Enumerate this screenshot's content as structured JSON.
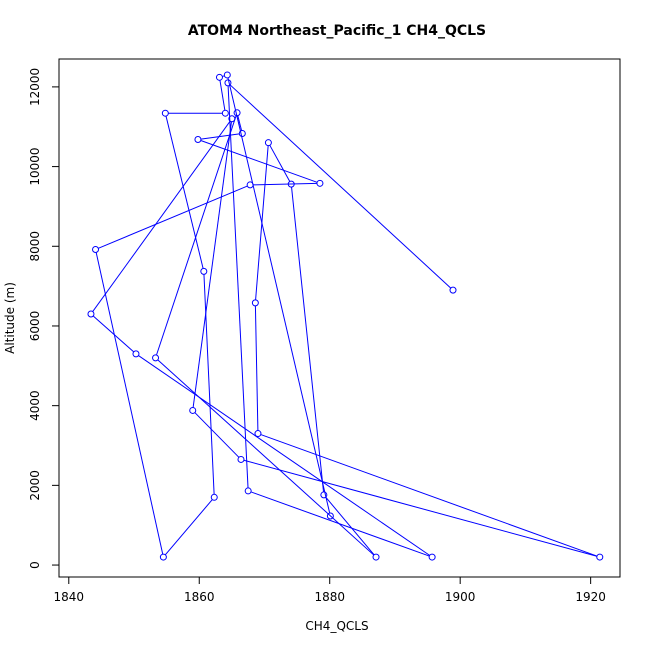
{
  "chart_data": {
    "type": "line",
    "title": "ATOM4 Northeast_Pacific_1 CH4_QCLS",
    "xlabel": "CH4_QCLS",
    "ylabel": "Altitude (m)",
    "xlim": [
      1838.5,
      1924.5
    ],
    "ylim": [
      -300,
      12700
    ],
    "x_ticks": [
      1840,
      1860,
      1880,
      1900,
      1920
    ],
    "y_ticks": [
      0,
      2000,
      4000,
      6000,
      8000,
      10000,
      12000
    ],
    "grid": false,
    "legend": "none",
    "series_color": "#0000ff",
    "points": [
      {
        "x": 1898.9,
        "y": 6900
      },
      {
        "x": 1864.4,
        "y": 12100
      },
      {
        "x": 1867.5,
        "y": 1860
      },
      {
        "x": 1895.7,
        "y": 200
      },
      {
        "x": 1850.3,
        "y": 5300
      },
      {
        "x": 1843.4,
        "y": 6300
      },
      {
        "x": 1865.0,
        "y": 11200
      },
      {
        "x": 1859.0,
        "y": 3880
      },
      {
        "x": 1866.4,
        "y": 2650
      },
      {
        "x": 1921.4,
        "y": 200
      },
      {
        "x": 1869.0,
        "y": 3300
      },
      {
        "x": 1868.6,
        "y": 6580
      },
      {
        "x": 1870.6,
        "y": 10600
      },
      {
        "x": 1874.1,
        "y": 9560
      },
      {
        "x": 1879.1,
        "y": 1760
      },
      {
        "x": 1887.1,
        "y": 200
      },
      {
        "x": 1853.3,
        "y": 5200
      },
      {
        "x": 1865.8,
        "y": 11350
      },
      {
        "x": 1866.6,
        "y": 10830
      },
      {
        "x": 1859.8,
        "y": 10680
      },
      {
        "x": 1878.5,
        "y": 9580
      },
      {
        "x": 1867.8,
        "y": 9540
      },
      {
        "x": 1844.1,
        "y": 7920
      },
      {
        "x": 1854.5,
        "y": 200
      },
      {
        "x": 1862.3,
        "y": 1700
      },
      {
        "x": 1860.7,
        "y": 7370
      },
      {
        "x": 1854.8,
        "y": 11340
      },
      {
        "x": 1864.0,
        "y": 11340
      },
      {
        "x": 1863.1,
        "y": 12240
      },
      {
        "x": 1864.3,
        "y": 12300
      },
      {
        "x": 1880.1,
        "y": 1230
      }
    ]
  }
}
